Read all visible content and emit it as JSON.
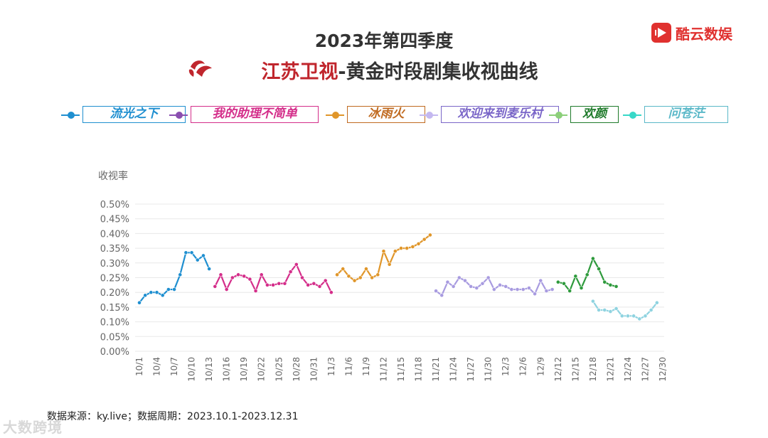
{
  "header": {
    "title_line1": "2023年第四季度",
    "title_line2_highlight": "江苏卫视",
    "title_line2_rest": "-黄金时段剧集收视曲线",
    "brand_name": "酷云数娱",
    "brand_color": "#e0312f",
    "channel_logo": "jiangsu-tv-logo"
  },
  "footer": {
    "source": "数据来源：ky.live；数据周期：2023.10.1-2023.12.31",
    "watermark": "大数跨境"
  },
  "chart_data": {
    "type": "line",
    "ylabel": "收视率",
    "ylim": [
      0,
      0.5
    ],
    "y_ticks": [
      "0.00%",
      "0.05%",
      "0.10%",
      "0.15%",
      "0.20%",
      "0.25%",
      "0.30%",
      "0.35%",
      "0.40%",
      "0.45%",
      "0.50%"
    ],
    "x_tick_labels": [
      "10/1",
      "10/4",
      "10/7",
      "10/10",
      "10/13",
      "10/16",
      "10/19",
      "10/22",
      "10/25",
      "10/28",
      "10/31",
      "11/3",
      "11/6",
      "11/9",
      "11/12",
      "11/15",
      "11/18",
      "11/21",
      "11/24",
      "11/27",
      "11/30",
      "12/3",
      "12/6",
      "12/9",
      "12/12",
      "12/15",
      "12/18",
      "12/21",
      "12/24",
      "12/27",
      "12/30"
    ],
    "grid": true,
    "legend_position": "top",
    "series": [
      {
        "name": "流光之下",
        "color": "#1f8fd0",
        "start": "10/1",
        "values": [
          0.165,
          0.19,
          0.2,
          0.2,
          0.19,
          0.21,
          0.21,
          0.26,
          0.335,
          0.335,
          0.31,
          0.325,
          0.28
        ]
      },
      {
        "name": "我的助理不简单",
        "color": "#d42e8a",
        "start": "10/14",
        "values": [
          0.22,
          0.26,
          0.21,
          0.25,
          0.26,
          0.255,
          0.245,
          0.205,
          0.26,
          0.225,
          0.225,
          0.23,
          0.23,
          0.27,
          0.295,
          0.25,
          0.225,
          0.23,
          0.22,
          0.24,
          0.2
        ]
      },
      {
        "name": "冰雨火",
        "color": "#e0962a",
        "start": "11/4",
        "values": [
          0.26,
          0.28,
          0.255,
          0.24,
          0.25,
          0.28,
          0.25,
          0.26,
          0.34,
          0.295,
          0.34,
          0.35,
          0.35,
          0.355,
          0.365,
          0.38,
          0.395
        ]
      },
      {
        "name": "欢迎来到麦乐村",
        "color": "#a89be0",
        "start": "11/21",
        "values": [
          0.205,
          0.19,
          0.235,
          0.22,
          0.25,
          0.24,
          0.22,
          0.215,
          0.23,
          0.25,
          0.21,
          0.225,
          0.22,
          0.21,
          0.21,
          0.21,
          0.215,
          0.195,
          0.24,
          0.205,
          0.21
        ]
      },
      {
        "name": "欢颜",
        "color": "#2e9a3c",
        "start": "12/12",
        "values": [
          0.235,
          0.23,
          0.205,
          0.255,
          0.215,
          0.26,
          0.315,
          0.28,
          0.235,
          0.225,
          0.22
        ]
      },
      {
        "name": "问苍茫",
        "color": "#8fd3e0",
        "start": "12/18",
        "values": [
          0.17,
          0.14,
          0.14,
          0.135,
          0.145,
          0.12,
          0.12,
          0.12,
          0.11,
          0.12,
          0.14,
          0.165
        ]
      }
    ]
  },
  "legend_styles": [
    {
      "line": "#1f8fd0",
      "text": "#1f8fd0",
      "border": "#1f8fd0"
    },
    {
      "line": "#8a4fb0",
      "text": "#d42e8a",
      "border": "#d42e8a"
    },
    {
      "line": "#e0962a",
      "text": "#c06a20",
      "border": "#c06a20"
    },
    {
      "line": "#c4b8f0",
      "text": "#7a66c8",
      "border": "#7a66c8"
    },
    {
      "line": "#8ccf7a",
      "text": "#1e7a2a",
      "border": "#1e7a2a"
    },
    {
      "line": "#38d8c8",
      "text": "#5ab8c8",
      "border": "#5ab8c8"
    }
  ]
}
